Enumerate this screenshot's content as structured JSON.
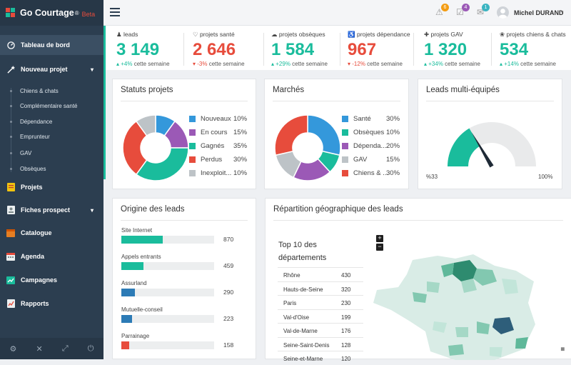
{
  "app": {
    "name": "Go Courtage",
    "reg": "®",
    "beta": "Beta"
  },
  "colors": {
    "sidebar": "#2c3e50",
    "accent": "#1abc9c",
    "up": "#1abc9c",
    "down": "#e74c3c",
    "primary": "#1abc9c"
  },
  "sidebar": {
    "items": [
      {
        "label": "Tableau de bord",
        "icon": "dashboard-icon"
      },
      {
        "label": "Nouveau projet",
        "icon": "magic-wand-icon"
      },
      {
        "label": "Projets",
        "icon": "folder-icon"
      },
      {
        "label": "Fiches prospect",
        "icon": "contact-card-icon"
      },
      {
        "label": "Catalogue",
        "icon": "catalogue-icon"
      },
      {
        "label": "Agenda",
        "icon": "calendar-icon"
      },
      {
        "label": "Campagnes",
        "icon": "campaign-icon"
      },
      {
        "label": "Rapports",
        "icon": "report-icon"
      }
    ],
    "subitems": [
      "Chiens & chats",
      "Complémentaire santé",
      "Dépendance",
      "Emprunteur",
      "GAV",
      "Obsèques"
    ],
    "footer_icons": [
      "settings-icon",
      "tools-icon",
      "fullscreen-icon",
      "power-icon"
    ]
  },
  "topbar": {
    "badges": [
      {
        "count": "6",
        "icon": "warning-icon",
        "color": "#f39c12"
      },
      {
        "count": "4",
        "icon": "tasks-icon",
        "color": "#9b59b6"
      },
      {
        "count": "1",
        "icon": "messages-icon",
        "color": "#3bb4c1"
      }
    ],
    "user": "Michel DURAND"
  },
  "kpis": [
    {
      "label": "leads",
      "icon": "users-icon",
      "value": "3 149",
      "trend": "+4%",
      "dir": "up",
      "suffix": "cette semaine",
      "color": "#1abc9c"
    },
    {
      "label": "projets santé",
      "icon": "heart-icon",
      "value": "2 646",
      "trend": "-3%",
      "dir": "down",
      "suffix": "cette semaine",
      "color": "#e74c3c"
    },
    {
      "label": "projets obsèques",
      "icon": "cloud-icon",
      "value": "1 584",
      "trend": "+29%",
      "dir": "up",
      "suffix": "cette semaine",
      "color": "#1abc9c"
    },
    {
      "label": "projets dépendance",
      "icon": "wheelchair-icon",
      "value": "967",
      "trend": "-12%",
      "dir": "down",
      "suffix": "cette semaine",
      "color": "#e74c3c"
    },
    {
      "label": "projets GAV",
      "icon": "bandage-icon",
      "value": "1 320",
      "trend": "+34%",
      "dir": "up",
      "suffix": "cette semaine",
      "color": "#1abc9c"
    },
    {
      "label": "projets chiens & chats",
      "icon": "paw-icon",
      "value": "534",
      "trend": "+14%",
      "dir": "up",
      "suffix": "cette semaine",
      "color": "#1abc9c"
    }
  ],
  "cards": {
    "statuts": "Statuts projets",
    "marches": "Marchés",
    "multi": "Leads multi-équipés",
    "origine": "Origine des leads",
    "repartition": "Répartition géographique des leads"
  },
  "gauge": {
    "value": 33,
    "min_label": "%33",
    "max_label": "100%"
  },
  "map": {
    "top10_title": "Top 10 des départements",
    "zoom_in": "+",
    "zoom_out": "−"
  },
  "chart_data": [
    {
      "type": "pie",
      "title": "Statuts projets",
      "categories": [
        "Nouveaux",
        "En cours",
        "Gagnés",
        "Perdus",
        "Inexploit..."
      ],
      "values": [
        10,
        15,
        35,
        30,
        10
      ],
      "labels": [
        "10%",
        "15%",
        "35%",
        "30%",
        "10%"
      ],
      "colors": [
        "#3498db",
        "#9b59b6",
        "#1abc9c",
        "#e74c3c",
        "#bdc3c7"
      ]
    },
    {
      "type": "pie",
      "title": "Marchés",
      "categories": [
        "Santé",
        "Obsèques",
        "Dépenda...",
        "GAV",
        "Chiens & ..."
      ],
      "values": [
        30,
        10,
        20,
        15,
        30
      ],
      "labels": [
        "30%",
        "10%",
        "20%",
        "15%",
        "30%"
      ],
      "colors": [
        "#3498db",
        "#1abc9c",
        "#9b59b6",
        "#bdc3c7",
        "#e74c3c"
      ]
    },
    {
      "type": "bar",
      "title": "Origine des leads",
      "categories": [
        "Site Internet",
        "Appels entrants",
        "Assurland",
        "Mutuelle-conseil",
        "Parrainage"
      ],
      "values": [
        870,
        459,
        290,
        223,
        158
      ],
      "xlim": [
        0,
        1950
      ],
      "colors": [
        "#1abc9c",
        "#1abc9c",
        "#2c7bb6",
        "#2c7bb6",
        "#e74c3c"
      ]
    },
    {
      "type": "table",
      "title": "Top 10 des départements",
      "rows": [
        [
          "Rhône",
          "430"
        ],
        [
          "Hauts-de-Seine",
          "320"
        ],
        [
          "Paris",
          "230"
        ],
        [
          "Val-d'Oise",
          "199"
        ],
        [
          "Val-de-Marne",
          "176"
        ],
        [
          "Seine-Saint-Denis",
          "128"
        ],
        [
          "Seine-et-Marne",
          "120"
        ]
      ]
    }
  ]
}
